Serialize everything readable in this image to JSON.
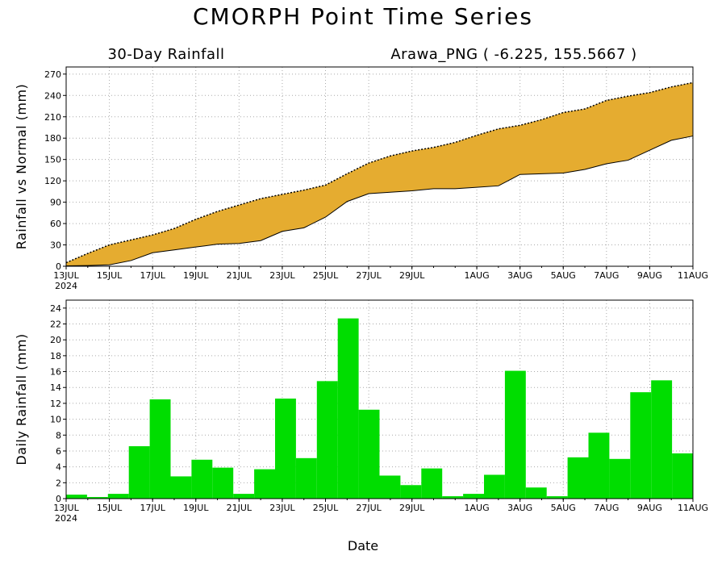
{
  "title": "CMORPH Point Time Series",
  "subtitle_left": "30-Day Rainfall",
  "subtitle_right": "Arawa_PNG ( -6.225, 155.5667 )",
  "xlabel": "Date",
  "x_ticks": [
    "13JUL",
    "15JUL",
    "17JUL",
    "19JUL",
    "21JUL",
    "23JUL",
    "25JUL",
    "27JUL",
    "29JUL",
    "1AUG",
    "3AUG",
    "5AUG",
    "7AUG",
    "9AUG",
    "11AUG"
  ],
  "x_year": "2024",
  "colors": {
    "accumulated_fill": "#e5ac30",
    "daily_bar": "#00dd00",
    "grid": "#aaaaaa"
  },
  "chart_data": [
    {
      "type": "area",
      "ylabel": "Rainfall vs Normal (mm)",
      "ylim": [
        0,
        280
      ],
      "yticks": [
        0,
        30,
        60,
        90,
        120,
        150,
        180,
        210,
        240,
        270
      ],
      "grid": true,
      "x": [
        "2024-07-13",
        "2024-07-14",
        "2024-07-15",
        "2024-07-16",
        "2024-07-17",
        "2024-07-18",
        "2024-07-19",
        "2024-07-20",
        "2024-07-21",
        "2024-07-22",
        "2024-07-23",
        "2024-07-24",
        "2024-07-25",
        "2024-07-26",
        "2024-07-27",
        "2024-07-28",
        "2024-07-29",
        "2024-07-30",
        "2024-07-31",
        "2024-08-01",
        "2024-08-02",
        "2024-08-03",
        "2024-08-04",
        "2024-08-05",
        "2024-08-06",
        "2024-08-07",
        "2024-08-08",
        "2024-08-09",
        "2024-08-10",
        "2024-08-11"
      ],
      "series": [
        {
          "name": "",
          "values": [
            0.5,
            1,
            2,
            8,
            19,
            23,
            27,
            31,
            32,
            36,
            49,
            54,
            69,
            91,
            102,
            104,
            106,
            109,
            109,
            111,
            113,
            129,
            130,
            131,
            136,
            144,
            149,
            163,
            177,
            183
          ]
        },
        {
          "name": "",
          "values": [
            5,
            18,
            30,
            37,
            44,
            53,
            66,
            77,
            86,
            95,
            101,
            107,
            114,
            130,
            145,
            155,
            162,
            167,
            174,
            184,
            193,
            198,
            206,
            216,
            221,
            233,
            239,
            244,
            252,
            258
          ]
        }
      ]
    },
    {
      "type": "bar",
      "ylabel": "Daily Rainfall (mm)",
      "ylim": [
        0,
        25
      ],
      "yticks": [
        0,
        2,
        4,
        6,
        8,
        10,
        12,
        14,
        16,
        18,
        20,
        22,
        24
      ],
      "grid": true,
      "x": [
        "2024-07-13",
        "2024-07-14",
        "2024-07-15",
        "2024-07-16",
        "2024-07-17",
        "2024-07-18",
        "2024-07-19",
        "2024-07-20",
        "2024-07-21",
        "2024-07-22",
        "2024-07-23",
        "2024-07-24",
        "2024-07-25",
        "2024-07-26",
        "2024-07-27",
        "2024-07-28",
        "2024-07-29",
        "2024-07-30",
        "2024-07-31",
        "2024-08-01",
        "2024-08-02",
        "2024-08-03",
        "2024-08-04",
        "2024-08-05",
        "2024-08-06",
        "2024-08-07",
        "2024-08-08",
        "2024-08-09",
        "2024-08-10",
        "2024-08-11"
      ],
      "values": [
        0.5,
        0.2,
        0.6,
        6.6,
        12.5,
        2.8,
        4.9,
        3.9,
        0.6,
        3.7,
        12.6,
        5.1,
        14.8,
        22.7,
        11.2,
        2.9,
        1.7,
        3.8,
        0.3,
        0.6,
        3.0,
        16.1,
        1.4,
        0.3,
        5.2,
        8.3,
        5.0,
        13.4,
        14.9,
        5.7
      ]
    }
  ]
}
